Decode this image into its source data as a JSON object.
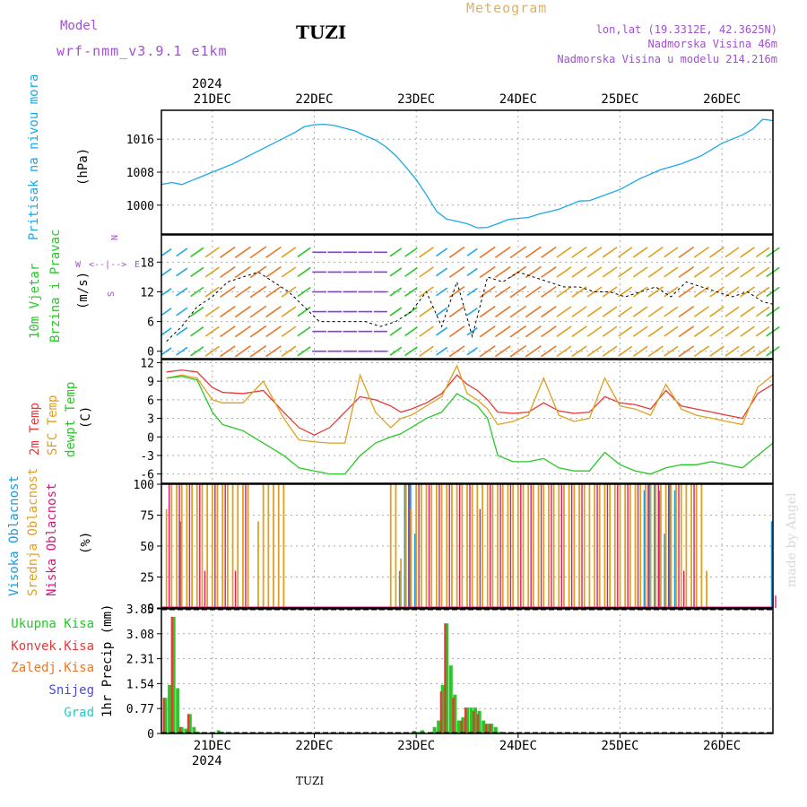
{
  "header": {
    "model_label": "Model",
    "model_name": "wrf-nmm_v3.9.1 e1km",
    "station": "TUZI",
    "meteogram_label": "Meteogram",
    "lonlat": "lon,lat (19.3312E, 42.3625N)",
    "altitude": "Nadmorska Visina 46m",
    "model_altitude": "Nadmorska Visina u modelu 214.216m",
    "year": "2024",
    "watermark": "made by Angel",
    "footer_station": "TUZI"
  },
  "colors": {
    "pressure": "#1ba8e8",
    "temp2m": "#e83838",
    "sfc_temp": "#e0a020",
    "dewpt": "#28c828",
    "low_cloud": "#d81880",
    "mid_cloud": "#e0a020",
    "high_cloud": "#1a9ae0",
    "precip_total": "#28c828",
    "precip_conv": "#e83838",
    "precip_frz": "#e87828",
    "snow": "#4848e0",
    "graupel": "#28c8c8",
    "wind_label": "#28c828",
    "units": "#000000",
    "compass": "#a050d0",
    "header_purple": "#a050d0",
    "meteogram_gold": "#e0b060"
  },
  "chart_data": [
    {
      "type": "line",
      "title": "",
      "ylabel": "Pritisak na nivou mora",
      "unit": "(hPa)",
      "ylim": [
        993,
        1023
      ],
      "yticks": [
        "1016",
        "1008",
        "1000"
      ],
      "ytick_values": [
        1016,
        1008,
        1000
      ],
      "xticks": [
        "21DEC",
        "22DEC",
        "23DEC",
        "24DEC",
        "25DEC",
        "26DEC"
      ],
      "xlim": [
        20.5,
        26.5
      ],
      "grid": true,
      "x": [
        20.5,
        20.6,
        20.7,
        20.8,
        20.9,
        21.0,
        21.2,
        21.4,
        21.6,
        21.8,
        21.9,
        22.0,
        22.1,
        22.2,
        22.4,
        22.5,
        22.6,
        22.7,
        22.8,
        22.9,
        23.0,
        23.1,
        23.2,
        23.3,
        23.4,
        23.5,
        23.6,
        23.7,
        23.8,
        23.9,
        24.0,
        24.1,
        24.2,
        24.3,
        24.4,
        24.5,
        24.6,
        24.7,
        24.8,
        25.0,
        25.2,
        25.4,
        25.6,
        25.8,
        26.0,
        26.2,
        26.3,
        26.4,
        26.5
      ],
      "series": [
        {
          "values": [
            1005.0,
            1005.5,
            1005.0,
            1006.0,
            1007.0,
            1008.0,
            1010.0,
            1012.5,
            1015.0,
            1017.5,
            1019.0,
            1019.5,
            1019.6,
            1019.3,
            1018.0,
            1016.8,
            1015.8,
            1014.2,
            1012.0,
            1009.2,
            1006.2,
            1002.5,
            998.5,
            996.6,
            996.1,
            995.5,
            994.5,
            994.6,
            995.5,
            996.5,
            996.8,
            997.0,
            997.8,
            998.4,
            999.0,
            1000.0,
            1001.0,
            1001.1,
            1002.0,
            1003.8,
            1006.5,
            1008.6,
            1010.0,
            1012.0,
            1015.0,
            1017.0,
            1018.4,
            1020.8,
            1020.5
          ]
        }
      ]
    },
    {
      "type": "line",
      "title": "",
      "ylabel": "10m Vjetar Brzina i Pravac",
      "unit": "(m/s)",
      "ylim": [
        -1.5,
        23.5
      ],
      "yticks": [
        "18",
        "12",
        "6",
        "0"
      ],
      "ytick_values": [
        18,
        12,
        6,
        0
      ],
      "compass": [
        "N",
        "E",
        "S",
        "W"
      ],
      "xlim": [
        20.5,
        26.5
      ],
      "grid": true,
      "x": [
        20.55,
        20.7,
        20.85,
        21.0,
        21.15,
        21.3,
        21.45,
        21.6,
        21.75,
        21.9,
        22.05,
        22.2,
        22.35,
        22.5,
        22.65,
        22.8,
        22.95,
        23.1,
        23.25,
        23.4,
        23.55,
        23.7,
        23.85,
        24.0,
        24.15,
        24.3,
        24.45,
        24.6,
        24.75,
        24.9,
        25.05,
        25.2,
        25.35,
        25.5,
        25.65,
        25.8,
        25.95,
        26.1,
        26.25,
        26.4,
        26.5
      ],
      "series": [
        {
          "values": [
            2,
            5,
            9,
            11,
            14,
            15,
            16,
            14,
            12,
            9,
            6,
            6,
            6,
            6,
            5,
            6,
            8,
            12,
            5,
            14,
            3,
            15,
            14,
            16,
            15,
            14,
            13,
            13,
            12,
            12,
            11,
            12,
            13,
            11,
            14,
            13,
            12,
            11,
            12,
            10,
            9.5
          ]
        }
      ]
    },
    {
      "type": "line",
      "title": "",
      "ylabel": "2m Temp / SFC Temp / dewpt Temp",
      "unit": "(C)",
      "ylim": [
        -7.5,
        12.5
      ],
      "yticks": [
        "12",
        "9",
        "6",
        "3",
        "0",
        "-3",
        "-6"
      ],
      "ytick_values": [
        12,
        9,
        6,
        3,
        0,
        -3,
        -6
      ],
      "xlim": [
        20.5,
        26.5
      ],
      "grid": true,
      "x": [
        20.55,
        20.7,
        20.85,
        21.0,
        21.1,
        21.3,
        21.5,
        21.7,
        21.85,
        22.0,
        22.15,
        22.3,
        22.45,
        22.6,
        22.75,
        22.85,
        22.95,
        23.1,
        23.25,
        23.4,
        23.5,
        23.6,
        23.7,
        23.8,
        23.95,
        24.1,
        24.25,
        24.4,
        24.55,
        24.7,
        24.85,
        25.0,
        25.15,
        25.3,
        25.45,
        25.6,
        25.75,
        25.9,
        26.05,
        26.2,
        26.35,
        26.5
      ],
      "series": [
        {
          "name": "2m Temp",
          "values": [
            10.5,
            10.8,
            10.5,
            8.0,
            7.2,
            7.0,
            7.5,
            4.0,
            1.5,
            0.3,
            1.5,
            4.0,
            6.5,
            6.0,
            5.0,
            4.0,
            4.5,
            5.5,
            7.0,
            10.0,
            8.5,
            7.5,
            6.0,
            4.0,
            3.8,
            4.0,
            5.5,
            4.2,
            3.8,
            4.0,
            6.5,
            5.5,
            5.2,
            4.5,
            7.5,
            5.0,
            4.5,
            4.0,
            3.5,
            3.0,
            7.0,
            8.5
          ]
        },
        {
          "name": "SFC Temp",
          "values": [
            9.5,
            10.0,
            9.5,
            6.0,
            5.5,
            5.5,
            9.0,
            3.0,
            -0.5,
            -0.8,
            -1.0,
            -1.0,
            10.0,
            4.0,
            1.5,
            3.0,
            3.5,
            5.0,
            6.5,
            11.5,
            7.0,
            6.0,
            4.5,
            2.0,
            2.5,
            3.5,
            9.5,
            3.5,
            2.5,
            3.0,
            9.5,
            5.0,
            4.5,
            3.5,
            8.5,
            4.5,
            3.5,
            3.0,
            2.5,
            2.0,
            8.0,
            10.0
          ]
        },
        {
          "name": "dewpt Temp",
          "values": [
            9.5,
            9.8,
            9.2,
            4.0,
            2.0,
            1.0,
            -1.0,
            -3.0,
            -5.0,
            -5.5,
            -6.0,
            -6.0,
            -3.0,
            -1.0,
            0.0,
            0.5,
            1.5,
            3.0,
            4.0,
            7.0,
            6.0,
            5.0,
            3.0,
            -3.0,
            -4.0,
            -4.0,
            -3.5,
            -5.0,
            -5.5,
            -5.5,
            -2.5,
            -4.5,
            -5.5,
            -6.0,
            -5.0,
            -4.5,
            -4.5,
            -4.0,
            -4.5,
            -5.0,
            -3.0,
            -1.0
          ]
        }
      ]
    },
    {
      "type": "bar",
      "title": "",
      "ylabel": "Visoka Oblacnost / Srednja Oblacnost / Niska Oblacnost",
      "unit": "(%)",
      "ylim": [
        0,
        100
      ],
      "yticks": [
        "100",
        "75",
        "50",
        "25",
        "0"
      ],
      "ytick_values": [
        100,
        75,
        50,
        25,
        0
      ],
      "xlim": [
        20.5,
        26.5
      ],
      "grid": true,
      "x": [
        20.55,
        20.6,
        20.65,
        20.7,
        20.75,
        20.8,
        20.85,
        20.9,
        20.95,
        21.0,
        21.05,
        21.1,
        21.15,
        21.2,
        21.25,
        21.3,
        21.35,
        21.45,
        21.5,
        21.55,
        21.6,
        21.65,
        21.7,
        22.75,
        22.8,
        22.85,
        22.9,
        22.95,
        23.0,
        23.05,
        23.1,
        23.15,
        23.2,
        23.25,
        23.3,
        23.35,
        23.4,
        23.45,
        23.5,
        23.55,
        23.6,
        23.65,
        23.7,
        23.75,
        23.8,
        23.85,
        23.9,
        23.95,
        24.0,
        24.05,
        24.1,
        24.15,
        24.2,
        24.25,
        24.3,
        24.35,
        24.4,
        24.45,
        24.5,
        24.55,
        24.6,
        24.65,
        24.7,
        24.75,
        24.8,
        24.85,
        24.9,
        24.95,
        25.0,
        25.05,
        25.1,
        25.15,
        25.2,
        25.25,
        25.3,
        25.35,
        25.4,
        25.45,
        25.5,
        25.55,
        25.6,
        25.65,
        25.7,
        25.75,
        25.8,
        25.85,
        26.5
      ],
      "series": [
        {
          "name": "Niska Oblacnost",
          "values": [
            100,
            0,
            100,
            0,
            100,
            0,
            100,
            30,
            0,
            100,
            0,
            100,
            0,
            30,
            0,
            100,
            0,
            0,
            0,
            0,
            0,
            0,
            0,
            0,
            0,
            0,
            100,
            0,
            100,
            0,
            100,
            0,
            100,
            0,
            100,
            0,
            100,
            0,
            100,
            0,
            80,
            0,
            100,
            0,
            100,
            0,
            100,
            0,
            100,
            0,
            100,
            0,
            100,
            0,
            100,
            0,
            100,
            0,
            100,
            0,
            100,
            0,
            0,
            100,
            0,
            100,
            0,
            100,
            0,
            100,
            0,
            100,
            0,
            100,
            0,
            100,
            0,
            100,
            0,
            100,
            30,
            0,
            100,
            0,
            0,
            0,
            10
          ]
        },
        {
          "name": "Srednja Oblacnost",
          "values": [
            80,
            100,
            100,
            100,
            100,
            100,
            100,
            100,
            100,
            100,
            100,
            100,
            100,
            100,
            100,
            100,
            100,
            70,
            100,
            100,
            100,
            100,
            100,
            100,
            100,
            40,
            100,
            80,
            100,
            100,
            100,
            100,
            100,
            100,
            100,
            100,
            100,
            100,
            100,
            100,
            100,
            100,
            100,
            100,
            100,
            100,
            100,
            100,
            100,
            100,
            100,
            100,
            100,
            100,
            100,
            100,
            100,
            100,
            100,
            100,
            100,
            100,
            100,
            100,
            100,
            100,
            100,
            100,
            100,
            100,
            100,
            100,
            100,
            100,
            100,
            100,
            100,
            100,
            100,
            100,
            100,
            100,
            100,
            100,
            100,
            30,
            10
          ]
        },
        {
          "name": "Visoka Oblacnost",
          "values": [
            0,
            0,
            0,
            70,
            0,
            0,
            0,
            0,
            0,
            0,
            0,
            0,
            0,
            0,
            0,
            0,
            0,
            0,
            0,
            0,
            0,
            0,
            0,
            0,
            0,
            30,
            100,
            100,
            60,
            0,
            0,
            0,
            0,
            0,
            0,
            0,
            0,
            0,
            0,
            0,
            0,
            0,
            0,
            0,
            0,
            0,
            0,
            0,
            0,
            0,
            0,
            0,
            0,
            0,
            0,
            0,
            0,
            0,
            0,
            0,
            0,
            0,
            0,
            0,
            0,
            0,
            0,
            0,
            0,
            0,
            0,
            0,
            0,
            95,
            100,
            100,
            95,
            60,
            100,
            95,
            0,
            0,
            0,
            0,
            0,
            0,
            70
          ]
        }
      ]
    },
    {
      "type": "bar",
      "title": "",
      "ylabel": "1hr Precip",
      "unit": "(mm)",
      "ylim": [
        0,
        3.85
      ],
      "yticks": [
        "3.85",
        "3.08",
        "2.31",
        "1.54",
        "0.77",
        "0"
      ],
      "ytick_values": [
        3.85,
        3.08,
        2.31,
        1.54,
        0.77,
        0
      ],
      "xticks": [
        "21DEC",
        "22DEC",
        "23DEC",
        "24DEC",
        "25DEC",
        "26DEC"
      ],
      "xlim": [
        20.5,
        26.5
      ],
      "grid": true,
      "legend": [
        "Ukupna Kisa",
        "Konvek.Kisa",
        "Zaledj.Kisa",
        "Snijeg",
        "Grad"
      ],
      "x": [
        20.54,
        20.58,
        20.62,
        20.66,
        20.7,
        20.74,
        20.78,
        20.82,
        20.86,
        20.9,
        21.06,
        21.1,
        22.98,
        23.02,
        23.06,
        23.18,
        23.22,
        23.26,
        23.3,
        23.34,
        23.38,
        23.42,
        23.46,
        23.5,
        23.54,
        23.58,
        23.62,
        23.66,
        23.7,
        23.74,
        23.78,
        23.82,
        23.86,
        23.9,
        23.94
      ],
      "series": [
        {
          "name": "Ukupna Kisa",
          "values": [
            1.1,
            1.5,
            3.6,
            1.4,
            0.2,
            0.15,
            0.6,
            0.2,
            0.05,
            0.03,
            0.1,
            0.05,
            0.08,
            0.05,
            0.1,
            0.2,
            0.4,
            1.5,
            3.4,
            2.1,
            1.2,
            0.4,
            0.5,
            0.8,
            0.8,
            0.8,
            0.7,
            0.4,
            0.3,
            0.3,
            0.2,
            0.05,
            0.03,
            0.02,
            0.02
          ]
        },
        {
          "name": "Konvek.Kisa",
          "values": [
            1.1,
            0,
            3.6,
            0,
            0.2,
            0,
            0.6,
            0,
            0,
            0,
            0,
            0,
            0,
            0,
            0,
            0,
            0,
            1.3,
            3.4,
            0,
            1.1,
            0,
            0.4,
            0.8,
            0,
            0.7,
            0.6,
            0,
            0.3,
            0.3,
            0,
            0,
            0,
            0,
            0
          ]
        }
      ]
    }
  ]
}
